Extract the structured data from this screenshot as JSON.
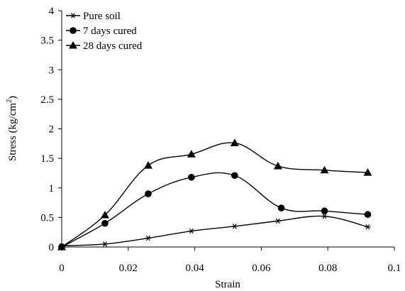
{
  "chart_data": {
    "type": "line",
    "xlabel": "Strain",
    "ylabel": "Stress (kg/cm",
    "ylabel_sup": "2",
    "ylabel_close": ")",
    "xlim": [
      0,
      0.1
    ],
    "ylim": [
      0,
      4
    ],
    "xticks": [
      0,
      0.02,
      0.04,
      0.06,
      0.08,
      0.1
    ],
    "yticks": [
      0,
      0.5,
      1,
      1.5,
      2,
      2.5,
      3,
      3.5,
      4
    ],
    "grid": false,
    "legend_position": "top-left",
    "series": [
      {
        "name": "Pure soil",
        "marker": "asterisk",
        "x": [
          0,
          0.013,
          0.026,
          0.039,
          0.052,
          0.065,
          0.079,
          0.092
        ],
        "y": [
          0.02,
          0.05,
          0.15,
          0.27,
          0.35,
          0.44,
          0.52,
          0.34
        ]
      },
      {
        "name": "7 days cured",
        "marker": "circle",
        "x": [
          0,
          0.013,
          0.026,
          0.039,
          0.052,
          0.066,
          0.079,
          0.092
        ],
        "y": [
          0.0,
          0.4,
          0.9,
          1.18,
          1.21,
          0.66,
          0.61,
          0.55
        ]
      },
      {
        "name": "28 days cured",
        "marker": "triangle",
        "x": [
          0,
          0.013,
          0.026,
          0.039,
          0.052,
          0.065,
          0.079,
          0.092
        ],
        "y": [
          0.0,
          0.54,
          1.38,
          1.57,
          1.76,
          1.37,
          1.3,
          1.26
        ]
      }
    ]
  }
}
